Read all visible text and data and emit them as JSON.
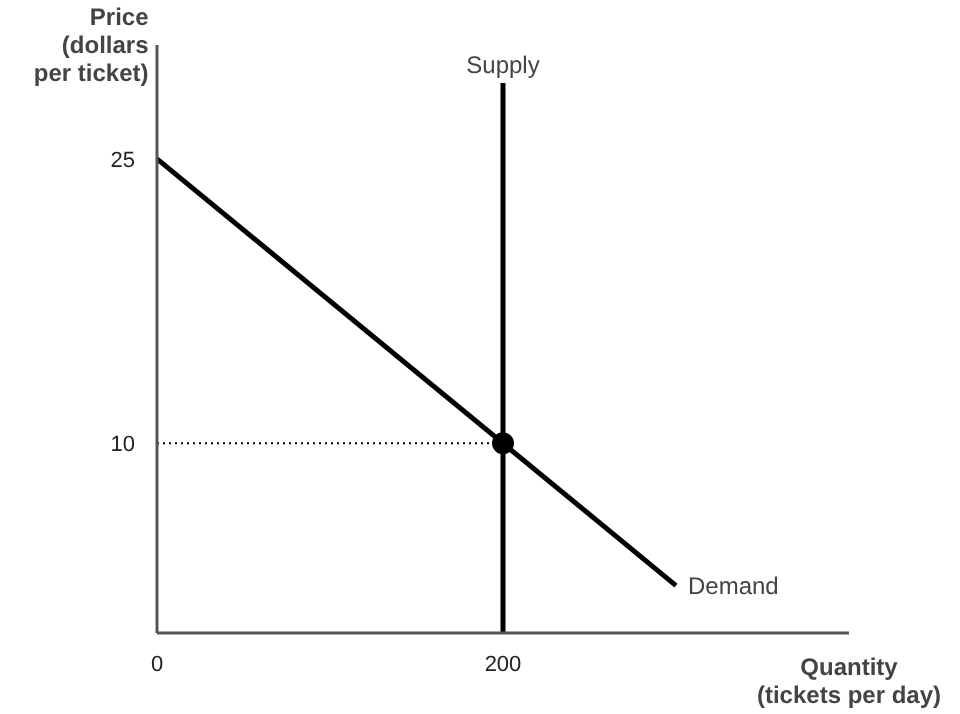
{
  "chart_data": {
    "type": "line",
    "xlabel": "Quantity\n(tickets per day)",
    "ylabel": "Price\n(dollars\nper ticket)",
    "xlim": [
      0,
      400
    ],
    "ylim": [
      0,
      31
    ],
    "xticks": [
      0,
      200
    ],
    "yticks": [
      10,
      25
    ],
    "grid": false,
    "legend": false,
    "marker": "none",
    "series": [
      {
        "name": "Demand",
        "color": "#000000",
        "x": [
          0,
          300
        ],
        "values": [
          25,
          2.5
        ],
        "line_style": "solid"
      },
      {
        "name": "Supply",
        "color": "#000000",
        "x": [
          200,
          200
        ],
        "values": [
          0,
          29
        ],
        "line_style": "solid"
      },
      {
        "color": "#000000",
        "x": [
          0,
          200
        ],
        "values": [
          10,
          10
        ],
        "line_style": "dotted"
      },
      {
        "type": "scatter",
        "color": "#000000",
        "x": [
          200
        ],
        "values": [
          10
        ],
        "marker": "circle"
      }
    ]
  }
}
